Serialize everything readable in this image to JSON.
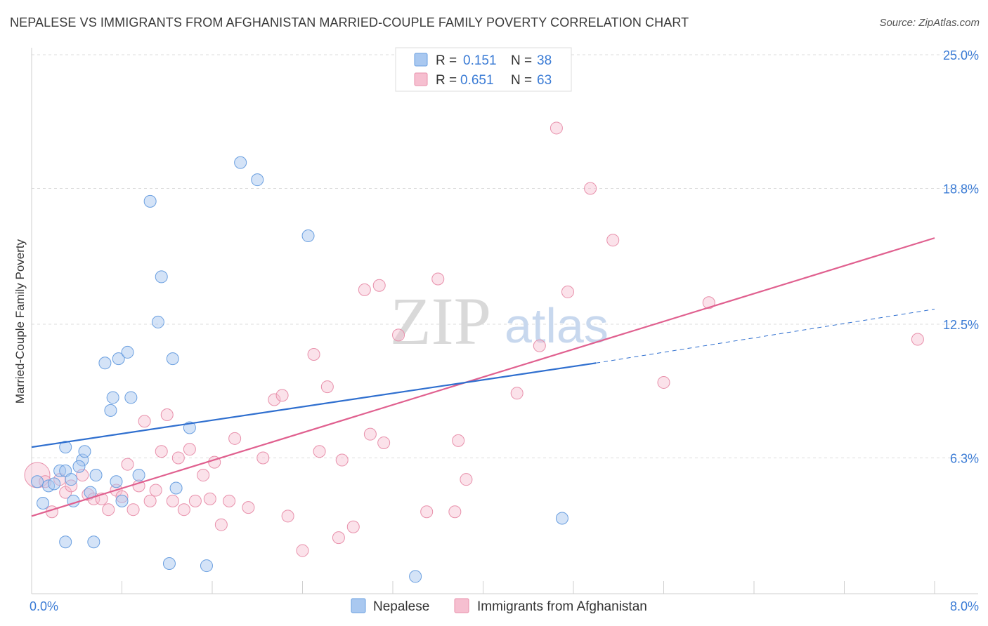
{
  "title": "NEPALESE VS IMMIGRANTS FROM AFGHANISTAN MARRIED-COUPLE FAMILY POVERTY CORRELATION CHART",
  "source": "Source: ZipAtlas.com",
  "watermark": {
    "zip": "ZIP",
    "atlas": "atlas"
  },
  "colors": {
    "nepalese_fill": "#a9c8f0",
    "nepalese_stroke": "#6a9fe0",
    "nepalese_line": "#2f6fcf",
    "afghan_fill": "#f6bfd0",
    "afghan_stroke": "#e890ab",
    "afghan_line": "#e0608f",
    "axis_label": "#3a7bd5",
    "grid": "#dcdcdc"
  },
  "legend": {
    "rows": [
      {
        "r_label": "R =",
        "r_value": "0.151",
        "n_label": "N =",
        "n_value": "38"
      },
      {
        "r_label": "R =",
        "r_value": "0.651",
        "n_label": "N =",
        "n_value": "63"
      }
    ]
  },
  "chart_data": {
    "type": "scatter",
    "title": "NEPALESE VS IMMIGRANTS FROM AFGHANISTAN MARRIED-COUPLE FAMILY POVERTY CORRELATION CHART",
    "xlabel": "",
    "ylabel": "Married-Couple Family Poverty",
    "xlim": [
      0,
      8.0
    ],
    "ylim": [
      0,
      25.0
    ],
    "x_tick_labels": [
      "0.0%",
      "8.0%"
    ],
    "y_tick_values": [
      6.3,
      12.5,
      18.8,
      25.0
    ],
    "y_tick_labels": [
      "6.3%",
      "12.5%",
      "18.8%",
      "25.0%"
    ],
    "legend_position": "top-center",
    "series": [
      {
        "name": "Nepalese",
        "r": 0.151,
        "n": 38,
        "points": [
          [
            0.05,
            5.2
          ],
          [
            0.1,
            4.2
          ],
          [
            0.15,
            5.0
          ],
          [
            0.2,
            5.1
          ],
          [
            0.25,
            5.7
          ],
          [
            0.3,
            5.7
          ],
          [
            0.35,
            5.3
          ],
          [
            0.3,
            6.8
          ],
          [
            0.45,
            6.2
          ],
          [
            0.47,
            6.6
          ],
          [
            0.37,
            4.3
          ],
          [
            0.52,
            4.7
          ],
          [
            0.57,
            5.5
          ],
          [
            0.42,
            5.9
          ],
          [
            0.65,
            10.7
          ],
          [
            0.7,
            8.5
          ],
          [
            0.72,
            9.1
          ],
          [
            0.75,
            5.2
          ],
          [
            0.77,
            10.9
          ],
          [
            0.8,
            4.3
          ],
          [
            0.85,
            11.2
          ],
          [
            0.88,
            9.1
          ],
          [
            0.95,
            5.5
          ],
          [
            1.05,
            18.2
          ],
          [
            1.12,
            12.6
          ],
          [
            1.15,
            14.7
          ],
          [
            1.25,
            10.9
          ],
          [
            1.28,
            4.9
          ],
          [
            1.4,
            7.7
          ],
          [
            1.85,
            20.0
          ],
          [
            2.0,
            19.2
          ],
          [
            2.45,
            16.6
          ],
          [
            0.3,
            2.4
          ],
          [
            0.55,
            2.4
          ],
          [
            1.22,
            1.4
          ],
          [
            1.55,
            1.3
          ],
          [
            3.4,
            0.8
          ],
          [
            4.7,
            3.5
          ]
        ]
      },
      {
        "name": "Immigrants from Afghanistan",
        "r": 0.651,
        "n": 63,
        "points": [
          [
            0.05,
            5.5
          ],
          [
            0.12,
            5.2
          ],
          [
            0.18,
            3.8
          ],
          [
            0.25,
            5.3
          ],
          [
            0.3,
            4.7
          ],
          [
            0.35,
            5.0
          ],
          [
            0.45,
            5.5
          ],
          [
            0.5,
            4.6
          ],
          [
            0.55,
            4.4
          ],
          [
            0.62,
            4.4
          ],
          [
            0.68,
            3.9
          ],
          [
            0.75,
            4.8
          ],
          [
            0.8,
            4.5
          ],
          [
            0.85,
            6.0
          ],
          [
            0.9,
            3.9
          ],
          [
            0.95,
            5.0
          ],
          [
            1.0,
            8.0
          ],
          [
            1.05,
            4.3
          ],
          [
            1.1,
            4.8
          ],
          [
            1.15,
            6.6
          ],
          [
            1.2,
            8.3
          ],
          [
            1.25,
            4.3
          ],
          [
            1.3,
            6.3
          ],
          [
            1.35,
            3.9
          ],
          [
            1.4,
            6.7
          ],
          [
            1.45,
            4.3
          ],
          [
            1.52,
            5.5
          ],
          [
            1.58,
            4.4
          ],
          [
            1.62,
            6.1
          ],
          [
            1.68,
            3.2
          ],
          [
            1.75,
            4.3
          ],
          [
            1.8,
            7.2
          ],
          [
            1.92,
            4.0
          ],
          [
            2.05,
            6.3
          ],
          [
            2.15,
            9.0
          ],
          [
            2.22,
            9.2
          ],
          [
            2.27,
            3.6
          ],
          [
            2.4,
            2.0
          ],
          [
            2.5,
            11.1
          ],
          [
            2.55,
            6.6
          ],
          [
            2.62,
            9.6
          ],
          [
            2.72,
            2.6
          ],
          [
            2.75,
            6.2
          ],
          [
            2.85,
            3.1
          ],
          [
            2.95,
            14.1
          ],
          [
            3.0,
            7.4
          ],
          [
            3.08,
            14.3
          ],
          [
            3.12,
            7.0
          ],
          [
            3.25,
            12.0
          ],
          [
            3.5,
            3.8
          ],
          [
            3.6,
            14.6
          ],
          [
            3.75,
            3.8
          ],
          [
            3.78,
            7.1
          ],
          [
            3.85,
            5.3
          ],
          [
            4.3,
            9.3
          ],
          [
            4.5,
            11.5
          ],
          [
            4.65,
            21.6
          ],
          [
            4.75,
            14.0
          ],
          [
            4.95,
            18.8
          ],
          [
            5.15,
            16.4
          ],
          [
            5.6,
            9.8
          ],
          [
            6.0,
            13.5
          ],
          [
            7.85,
            11.8
          ]
        ]
      }
    ],
    "trend_lines": [
      {
        "series": "Nepalese",
        "x": [
          0.0,
          5.0
        ],
        "y": [
          6.8,
          10.7
        ],
        "dashed_extension_to_x": 8.0,
        "dashed_extension_y": 13.2
      },
      {
        "series": "Immigrants from Afghanistan",
        "x": [
          0.0,
          8.0
        ],
        "y": [
          3.6,
          16.5
        ]
      }
    ]
  },
  "bottom_legend": [
    {
      "label": "Nepalese"
    },
    {
      "label": "Immigrants from Afghanistan"
    }
  ]
}
